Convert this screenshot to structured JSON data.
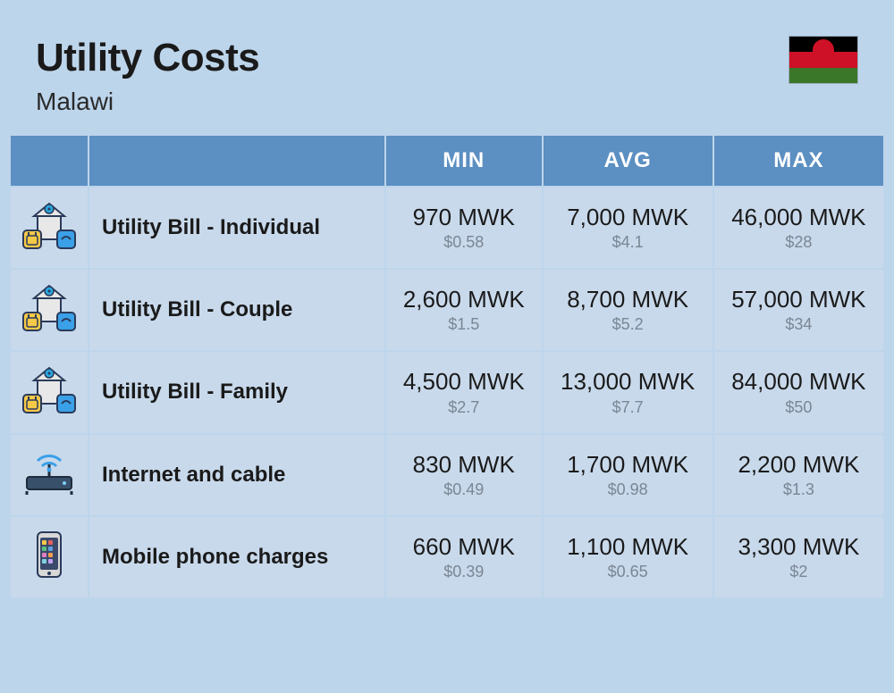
{
  "header": {
    "title": "Utility Costs",
    "subtitle": "Malawi"
  },
  "flag": {
    "stripes": [
      "#000000",
      "#ce1126",
      "#3a7728"
    ],
    "sun_color": "#ce1126"
  },
  "colors": {
    "page_bg": "#bdd5eb",
    "header_bg": "#5c8fc2",
    "header_text": "#ffffff",
    "cell_bg": "#c8d9eb",
    "main_text": "#1a1a1a",
    "sub_text": "#7a8694"
  },
  "table": {
    "columns": [
      "MIN",
      "AVG",
      "MAX"
    ],
    "rows": [
      {
        "icon": "utility-individual",
        "label": "Utility Bill - Individual",
        "min": {
          "main": "970 MWK",
          "sub": "$0.58"
        },
        "avg": {
          "main": "7,000 MWK",
          "sub": "$4.1"
        },
        "max": {
          "main": "46,000 MWK",
          "sub": "$28"
        }
      },
      {
        "icon": "utility-couple",
        "label": "Utility Bill - Couple",
        "min": {
          "main": "2,600 MWK",
          "sub": "$1.5"
        },
        "avg": {
          "main": "8,700 MWK",
          "sub": "$5.2"
        },
        "max": {
          "main": "57,000 MWK",
          "sub": "$34"
        }
      },
      {
        "icon": "utility-family",
        "label": "Utility Bill - Family",
        "min": {
          "main": "4,500 MWK",
          "sub": "$2.7"
        },
        "avg": {
          "main": "13,000 MWK",
          "sub": "$7.7"
        },
        "max": {
          "main": "84,000 MWK",
          "sub": "$50"
        }
      },
      {
        "icon": "internet",
        "label": "Internet and cable",
        "min": {
          "main": "830 MWK",
          "sub": "$0.49"
        },
        "avg": {
          "main": "1,700 MWK",
          "sub": "$0.98"
        },
        "max": {
          "main": "2,200 MWK",
          "sub": "$1.3"
        }
      },
      {
        "icon": "mobile",
        "label": "Mobile phone charges",
        "min": {
          "main": "660 MWK",
          "sub": "$0.39"
        },
        "avg": {
          "main": "1,100 MWK",
          "sub": "$0.65"
        },
        "max": {
          "main": "3,300 MWK",
          "sub": "$2"
        }
      }
    ]
  }
}
